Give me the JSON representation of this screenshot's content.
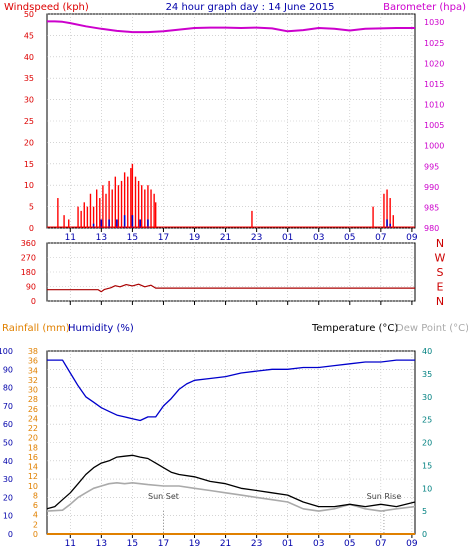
{
  "title": "24 hour graph day : 14 June 2015",
  "colors": {
    "wind_axis": "#dd0000",
    "baro_axis": "#cc00cc",
    "teal_axis": "#008080",
    "rain": "#e08000",
    "humidity": "#0000cc",
    "temperature": "#000000",
    "dewpoint": "#aaaaaa",
    "gust": "#ff0000",
    "wind_avg": "#0000cc",
    "wind_dir": "#aa0000",
    "wind_dir_letters": "#cc0000",
    "label_blue": "#0000aa",
    "plot_bg": "#ffffff"
  },
  "chart_data": [
    {
      "type": "bar",
      "name": "wind-barometer",
      "left_axis": {
        "label": "Windspeed (kph)",
        "ticks": [
          0,
          5,
          10,
          15,
          20,
          25,
          30,
          35,
          40,
          45,
          50
        ],
        "ylim": [
          0,
          50
        ]
      },
      "right_axis": {
        "label": "Barometer (hpa)",
        "ticks": [
          980,
          985,
          990,
          995,
          1000,
          1005,
          1010,
          1015,
          1020,
          1025,
          1030
        ],
        "ylim": [
          980,
          1032
        ]
      },
      "x_ticks": [
        "11",
        "13",
        "15",
        "17",
        "19",
        "21",
        "23",
        "01",
        "03",
        "05",
        "07",
        "09"
      ],
      "x_range_hours": [
        9.5,
        33.2
      ],
      "grid": true,
      "gust_bars": [
        [
          10.2,
          7
        ],
        [
          10.6,
          3
        ],
        [
          10.9,
          2
        ],
        [
          11.5,
          5
        ],
        [
          11.7,
          4
        ],
        [
          11.9,
          6
        ],
        [
          12.1,
          5
        ],
        [
          12.3,
          8
        ],
        [
          12.5,
          5
        ],
        [
          12.7,
          9
        ],
        [
          12.9,
          7
        ],
        [
          13.1,
          10
        ],
        [
          13.3,
          8
        ],
        [
          13.5,
          11
        ],
        [
          13.7,
          9
        ],
        [
          13.9,
          12
        ],
        [
          14.1,
          10
        ],
        [
          14.3,
          11
        ],
        [
          14.5,
          13
        ],
        [
          14.7,
          12
        ],
        [
          14.9,
          14
        ],
        [
          15.0,
          15
        ],
        [
          15.2,
          12
        ],
        [
          15.4,
          11
        ],
        [
          15.6,
          10
        ],
        [
          15.8,
          9
        ],
        [
          16.0,
          10
        ],
        [
          16.2,
          9
        ],
        [
          16.4,
          8
        ],
        [
          16.5,
          6
        ],
        [
          22.7,
          4
        ],
        [
          30.5,
          5
        ],
        [
          31.2,
          8
        ],
        [
          31.4,
          9
        ],
        [
          31.6,
          7
        ],
        [
          31.8,
          3
        ]
      ],
      "avg_bars": [
        [
          12.5,
          1
        ],
        [
          13.0,
          2
        ],
        [
          13.5,
          2
        ],
        [
          14.0,
          2
        ],
        [
          14.5,
          3
        ],
        [
          15.0,
          3
        ],
        [
          15.5,
          2
        ],
        [
          16.0,
          2
        ],
        [
          31.4,
          2
        ],
        [
          31.6,
          1
        ]
      ],
      "barometer": {
        "x": [
          9.5,
          10.0,
          10.5,
          11.0,
          12.0,
          13.0,
          14.0,
          15.0,
          16.0,
          17.0,
          18.0,
          19.0,
          20.0,
          21.0,
          22.0,
          23.0,
          24.0,
          25.0,
          26.0,
          27.0,
          28.0,
          29.0,
          30.0,
          31.0,
          32.0,
          33.2
        ],
        "y": [
          1030.2,
          1030.2,
          1030.1,
          1029.8,
          1029.0,
          1028.4,
          1027.9,
          1027.6,
          1027.6,
          1027.8,
          1028.2,
          1028.6,
          1028.7,
          1028.7,
          1028.6,
          1028.7,
          1028.5,
          1027.8,
          1028.1,
          1028.6,
          1028.4,
          1028.0,
          1028.4,
          1028.5,
          1028.6,
          1028.6
        ]
      }
    },
    {
      "type": "line",
      "name": "wind-direction",
      "left_axis": {
        "ticks": [
          0,
          90,
          180,
          270,
          360
        ],
        "ylim": [
          0,
          360
        ]
      },
      "right_labels": [
        "N",
        "W",
        "S",
        "E",
        "N"
      ],
      "x_range_hours": [
        9.5,
        33.2
      ],
      "grid": true,
      "series": {
        "x": [
          9.5,
          12.0,
          12.8,
          13.0,
          13.2,
          13.6,
          13.9,
          14.2,
          14.6,
          15.0,
          15.4,
          15.8,
          16.2,
          16.5,
          17.0,
          33.2
        ],
        "y": [
          70,
          70,
          70,
          58,
          72,
          82,
          95,
          88,
          102,
          94,
          104,
          88,
          98,
          80,
          80,
          80
        ]
      }
    },
    {
      "type": "line",
      "name": "temp-humidity",
      "rain_axis": {
        "label": "Rainfall (mm)",
        "ticks": [
          0,
          2,
          4,
          6,
          8,
          10,
          12,
          14,
          16,
          18,
          20,
          22,
          24,
          26,
          28,
          30,
          32,
          34,
          36,
          38
        ],
        "ylim": [
          0,
          38
        ]
      },
      "humidity_axis": {
        "label": "Humidity (%)",
        "ticks": [
          0,
          10,
          20,
          30,
          40,
          50,
          60,
          70,
          80,
          90,
          100
        ],
        "ylim": [
          0,
          100
        ]
      },
      "temp_axis": {
        "label": "Temperature (°C)",
        "ticks": [
          0,
          5,
          10,
          15,
          20,
          25,
          30,
          35,
          40
        ],
        "ylim": [
          0,
          40
        ]
      },
      "dewpoint_label": "Dew Point (°C)",
      "x_ticks": [
        "11",
        "13",
        "15",
        "17",
        "19",
        "21",
        "23",
        "01",
        "03",
        "05",
        "07",
        "09"
      ],
      "x_range_hours": [
        9.5,
        33.2
      ],
      "grid": true,
      "humidity": {
        "x": [
          9.5,
          10.5,
          11.0,
          11.5,
          12.0,
          12.5,
          13.0,
          13.5,
          14.0,
          14.5,
          15.0,
          15.5,
          16.0,
          16.5,
          17.0,
          17.5,
          18.0,
          18.5,
          19.0,
          20.0,
          21.0,
          22.0,
          23.0,
          24.0,
          25.0,
          26.0,
          27.0,
          28.0,
          29.0,
          30.0,
          31.0,
          32.0,
          33.2
        ],
        "y": [
          95,
          95,
          88,
          81,
          75,
          72,
          69,
          67,
          65,
          64,
          63,
          62,
          64,
          64,
          70,
          74,
          79,
          82,
          84,
          85,
          86,
          88,
          89,
          90,
          90,
          91,
          91,
          92,
          93,
          94,
          94,
          95,
          95
        ]
      },
      "temperature": {
        "x": [
          9.5,
          10.0,
          10.5,
          11.0,
          11.5,
          12.0,
          12.5,
          13.0,
          13.5,
          14.0,
          14.5,
          15.0,
          15.5,
          16.0,
          16.5,
          17.0,
          17.5,
          18.0,
          19.0,
          20.0,
          21.0,
          22.0,
          23.0,
          24.0,
          25.0,
          26.0,
          27.0,
          28.0,
          29.0,
          30.0,
          31.0,
          32.0,
          33.2
        ],
        "y": [
          5.5,
          6.0,
          7.5,
          9.0,
          11.0,
          13.0,
          14.5,
          15.5,
          16.0,
          16.8,
          17.0,
          17.2,
          16.8,
          16.5,
          15.5,
          14.5,
          13.5,
          13.0,
          12.5,
          11.5,
          11.0,
          10.0,
          9.5,
          9.0,
          8.5,
          7.0,
          6.0,
          6.0,
          6.5,
          6.0,
          6.5,
          6.0,
          7.0
        ]
      },
      "dewpoint": {
        "x": [
          9.5,
          10.5,
          11.0,
          11.5,
          12.0,
          12.5,
          13.0,
          13.5,
          14.0,
          14.5,
          15.0,
          15.5,
          16.0,
          17.0,
          18.0,
          19.0,
          20.0,
          21.0,
          22.0,
          23.0,
          24.0,
          25.0,
          26.0,
          27.0,
          28.0,
          29.0,
          30.0,
          31.0,
          32.0,
          33.2
        ],
        "y": [
          5.0,
          5.2,
          6.5,
          8.0,
          9.0,
          10.0,
          10.5,
          11.0,
          11.2,
          11.0,
          11.2,
          11.0,
          10.8,
          10.5,
          10.5,
          10.0,
          9.5,
          9.0,
          8.5,
          8.0,
          7.5,
          7.0,
          5.5,
          5.0,
          5.5,
          6.5,
          5.5,
          5.0,
          5.5,
          6.0
        ]
      },
      "rain": {
        "x": [
          9.5,
          33.2
        ],
        "y": [
          0,
          0
        ]
      },
      "annotations": [
        {
          "text": "Sun Set",
          "x": 17.0
        },
        {
          "text": "Sun Rise",
          "x": 31.2
        }
      ]
    }
  ]
}
